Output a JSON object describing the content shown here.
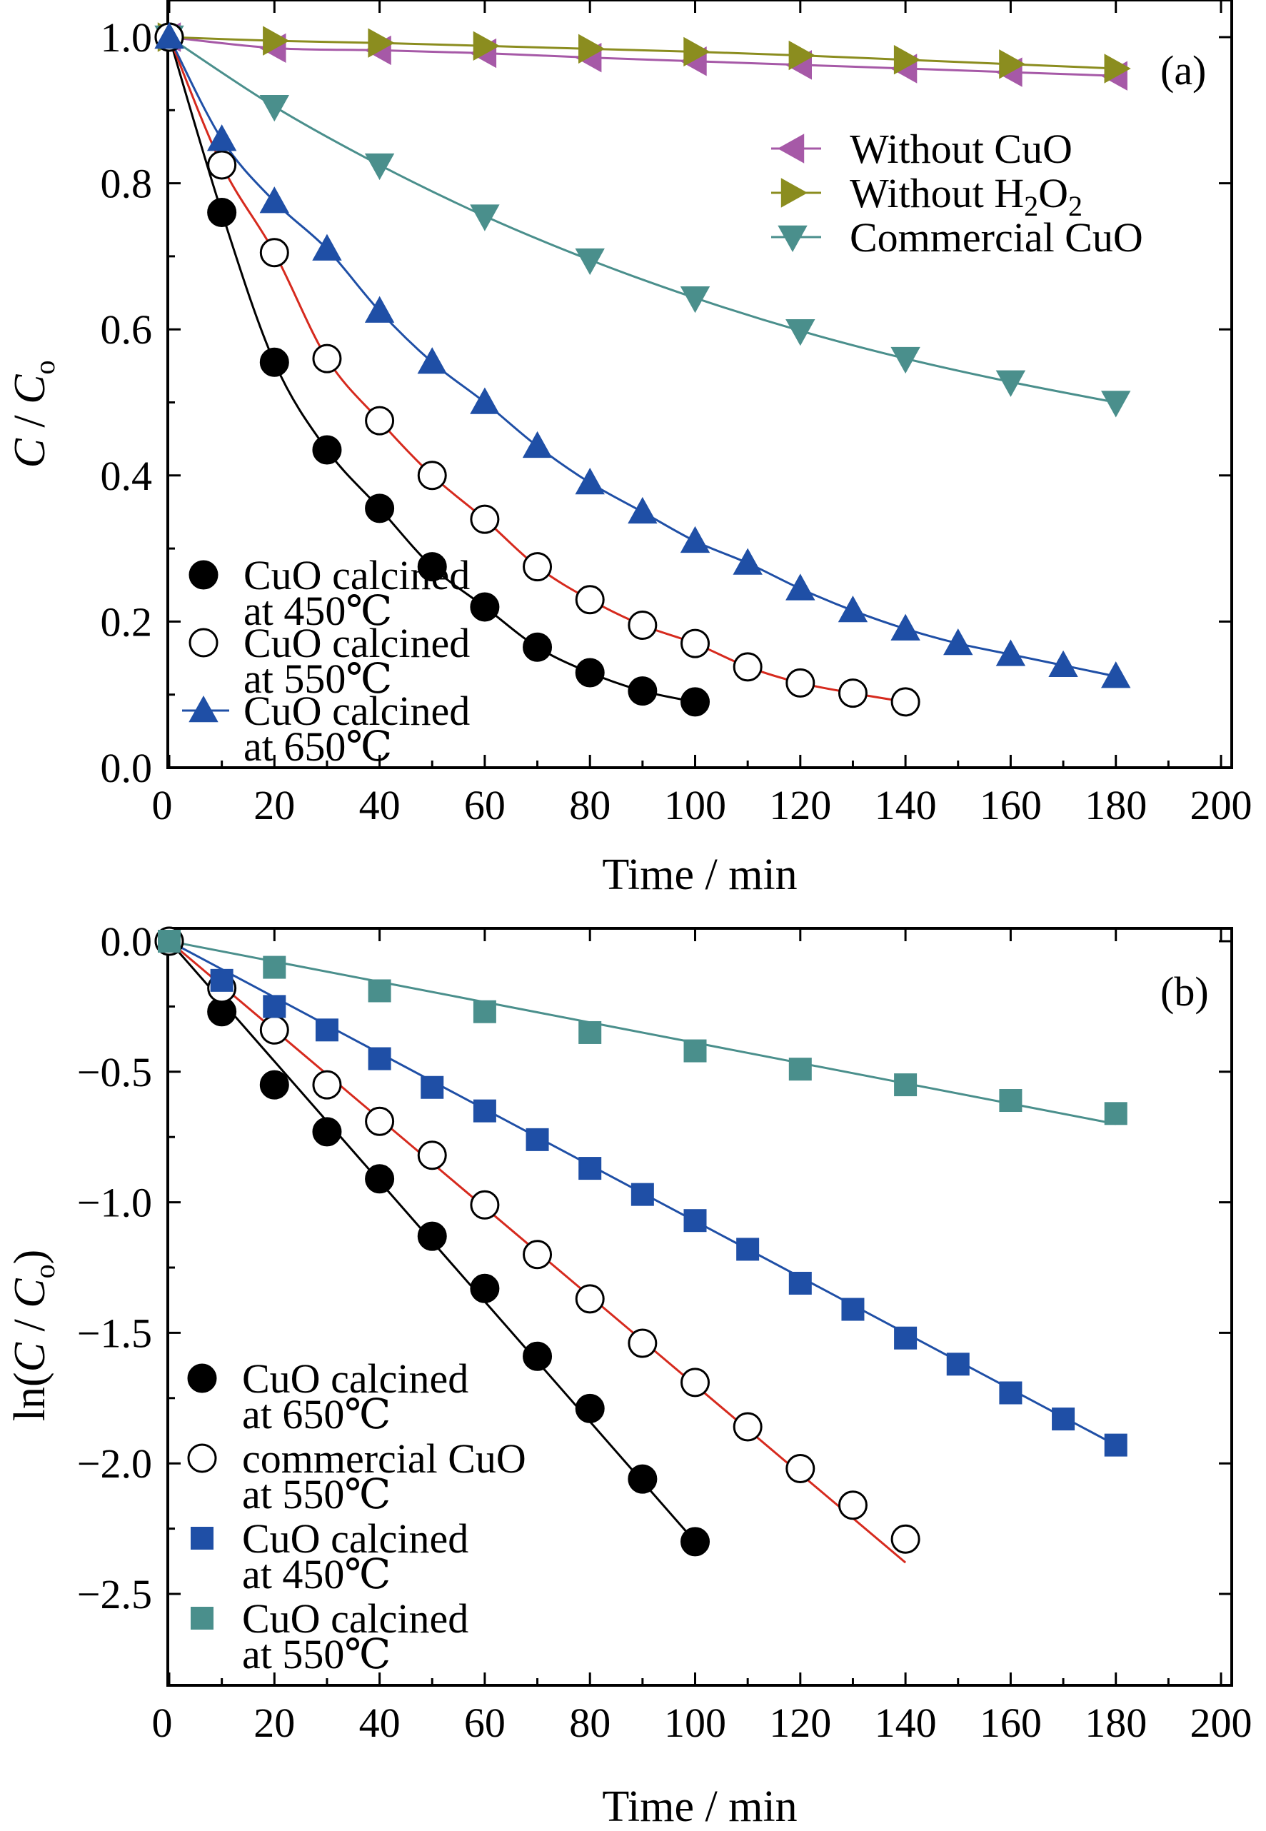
{
  "chart_data": [
    {
      "panel": "(a)",
      "type": "line",
      "xlabel": "Time / min",
      "ylabel": "C / Co",
      "xlim": [
        0,
        200
      ],
      "ylim": [
        0,
        1.0
      ],
      "xticks": [
        "0",
        "20",
        "40",
        "60",
        "80",
        "100",
        "120",
        "140",
        "160",
        "180",
        "200"
      ],
      "yticks": [
        "0.0",
        "0.2",
        "0.4",
        "0.6",
        "0.8",
        "1.0"
      ],
      "grid": false,
      "legends": [
        "top-right",
        "bottom-left"
      ],
      "series": [
        {
          "name": "Without CuO",
          "legend": "top-right",
          "marker": "triangle-left",
          "color": "#a659a7",
          "line_color": "#a659a7",
          "filled": true,
          "x": [
            0,
            20,
            40,
            60,
            80,
            100,
            120,
            140,
            160,
            180
          ],
          "y": [
            1.0,
            0.985,
            0.982,
            0.978,
            0.972,
            0.967,
            0.962,
            0.957,
            0.952,
            0.947
          ]
        },
        {
          "name": "Without H2O2",
          "legend": "top-right",
          "marker": "triangle-right",
          "color": "#8b8d1f",
          "line_color": "#8b8d1f",
          "filled": true,
          "x": [
            0,
            20,
            40,
            60,
            80,
            100,
            120,
            140,
            160,
            180
          ],
          "y": [
            1.0,
            0.995,
            0.992,
            0.988,
            0.984,
            0.98,
            0.975,
            0.969,
            0.963,
            0.957
          ]
        },
        {
          "name": "Commercial CuO",
          "legend": "top-right",
          "marker": "triangle-down",
          "color": "#4a8f8c",
          "line_color": "#4a8f8c",
          "filled": true,
          "x": [
            0,
            20,
            40,
            60,
            80,
            100,
            120,
            140,
            160,
            180
          ],
          "y": [
            1.0,
            0.905,
            0.825,
            0.755,
            0.695,
            0.643,
            0.598,
            0.56,
            0.528,
            0.5
          ]
        },
        {
          "name": "CuO calcined at 450℃",
          "legend": "bottom-left",
          "marker": "circle",
          "color": "#000000",
          "line_color": "#000000",
          "filled": true,
          "x": [
            0,
            10,
            20,
            30,
            40,
            50,
            60,
            70,
            80,
            90,
            100
          ],
          "y": [
            1.0,
            0.76,
            0.555,
            0.435,
            0.355,
            0.275,
            0.22,
            0.165,
            0.13,
            0.105,
            0.09
          ]
        },
        {
          "name": "CuO calcined at 550℃",
          "legend": "bottom-left",
          "marker": "circle",
          "color": "#000000",
          "line_color": "#d62a1e",
          "filled": false,
          "x": [
            0,
            10,
            20,
            30,
            40,
            50,
            60,
            70,
            80,
            90,
            100,
            110,
            120,
            130,
            140
          ],
          "y": [
            1.0,
            0.825,
            0.705,
            0.56,
            0.475,
            0.4,
            0.34,
            0.275,
            0.23,
            0.195,
            0.17,
            0.138,
            0.116,
            0.102,
            0.09
          ]
        },
        {
          "name": "CuO calcined at 650℃",
          "legend": "bottom-left",
          "marker": "triangle-up",
          "color": "#1f4fa6",
          "line_color": "#1f4fa6",
          "filled": true,
          "x": [
            0,
            10,
            20,
            30,
            40,
            50,
            60,
            70,
            80,
            90,
            100,
            110,
            120,
            130,
            140,
            150,
            160,
            170,
            180
          ],
          "y": [
            1.0,
            0.86,
            0.775,
            0.71,
            0.625,
            0.555,
            0.5,
            0.44,
            0.39,
            0.35,
            0.31,
            0.28,
            0.245,
            0.215,
            0.19,
            0.17,
            0.155,
            0.14,
            0.125
          ]
        }
      ]
    },
    {
      "panel": "(b)",
      "type": "line",
      "xlabel": "Time / min",
      "ylabel": "ln(C / Co)",
      "xlim": [
        0,
        200
      ],
      "ylim": [
        -2.75,
        0.0
      ],
      "xticks": [
        "0",
        "20",
        "40",
        "60",
        "80",
        "100",
        "120",
        "140",
        "160",
        "180",
        "200"
      ],
      "yticks": [
        "0.0",
        "−0.5",
        "−1.0",
        "−1.5",
        "−2.0",
        "−2.5"
      ],
      "grid": false,
      "legends": [
        "bottom-left"
      ],
      "series": [
        {
          "name": "CuO calcined at 650℃",
          "marker": "circle",
          "color": "#000000",
          "line_color": "#000000",
          "filled": true,
          "x": [
            0,
            10,
            20,
            30,
            40,
            50,
            60,
            70,
            80,
            90,
            100
          ],
          "y": [
            0.0,
            -0.27,
            -0.55,
            -0.73,
            -0.91,
            -1.13,
            -1.33,
            -1.59,
            -1.79,
            -2.06,
            -2.3
          ],
          "fit": [
            [
              0,
              0.0
            ],
            [
              100,
              -2.3
            ]
          ]
        },
        {
          "name": "commercial CuO at 550℃",
          "marker": "circle",
          "color": "#000000",
          "line_color": "#d62a1e",
          "filled": false,
          "x": [
            0,
            10,
            20,
            30,
            40,
            50,
            60,
            70,
            80,
            90,
            100,
            110,
            120,
            130,
            140
          ],
          "y": [
            0.0,
            -0.18,
            -0.34,
            -0.55,
            -0.69,
            -0.82,
            -1.01,
            -1.2,
            -1.37,
            -1.54,
            -1.69,
            -1.86,
            -2.02,
            -2.16,
            -2.29
          ],
          "fit": [
            [
              0,
              0.0
            ],
            [
              140,
              -2.38
            ]
          ]
        },
        {
          "name": "CuO calcined at 450℃",
          "marker": "square",
          "color": "#1f4fa6",
          "line_color": "#1f4fa6",
          "filled": true,
          "x": [
            0,
            10,
            20,
            30,
            40,
            50,
            60,
            70,
            80,
            90,
            100,
            110,
            120,
            130,
            140,
            150,
            160,
            170,
            180
          ],
          "y": [
            0.0,
            -0.15,
            -0.25,
            -0.34,
            -0.45,
            -0.56,
            -0.65,
            -0.76,
            -0.87,
            -0.97,
            -1.07,
            -1.18,
            -1.31,
            -1.41,
            -1.52,
            -1.62,
            -1.73,
            -1.83,
            -1.93
          ],
          "fit": [
            [
              0,
              0.0
            ],
            [
              180,
              -1.93
            ]
          ]
        },
        {
          "name": "CuO calcined at 550℃",
          "marker": "square",
          "color": "#4a8f8c",
          "line_color": "#4a8f8c",
          "filled": true,
          "x": [
            0,
            20,
            40,
            60,
            80,
            100,
            120,
            140,
            160,
            180
          ],
          "y": [
            0.0,
            -0.1,
            -0.19,
            -0.27,
            -0.35,
            -0.42,
            -0.49,
            -0.55,
            -0.61,
            -0.66
          ],
          "fit": [
            [
              0,
              0.0
            ],
            [
              180,
              -0.7
            ]
          ]
        }
      ]
    }
  ]
}
